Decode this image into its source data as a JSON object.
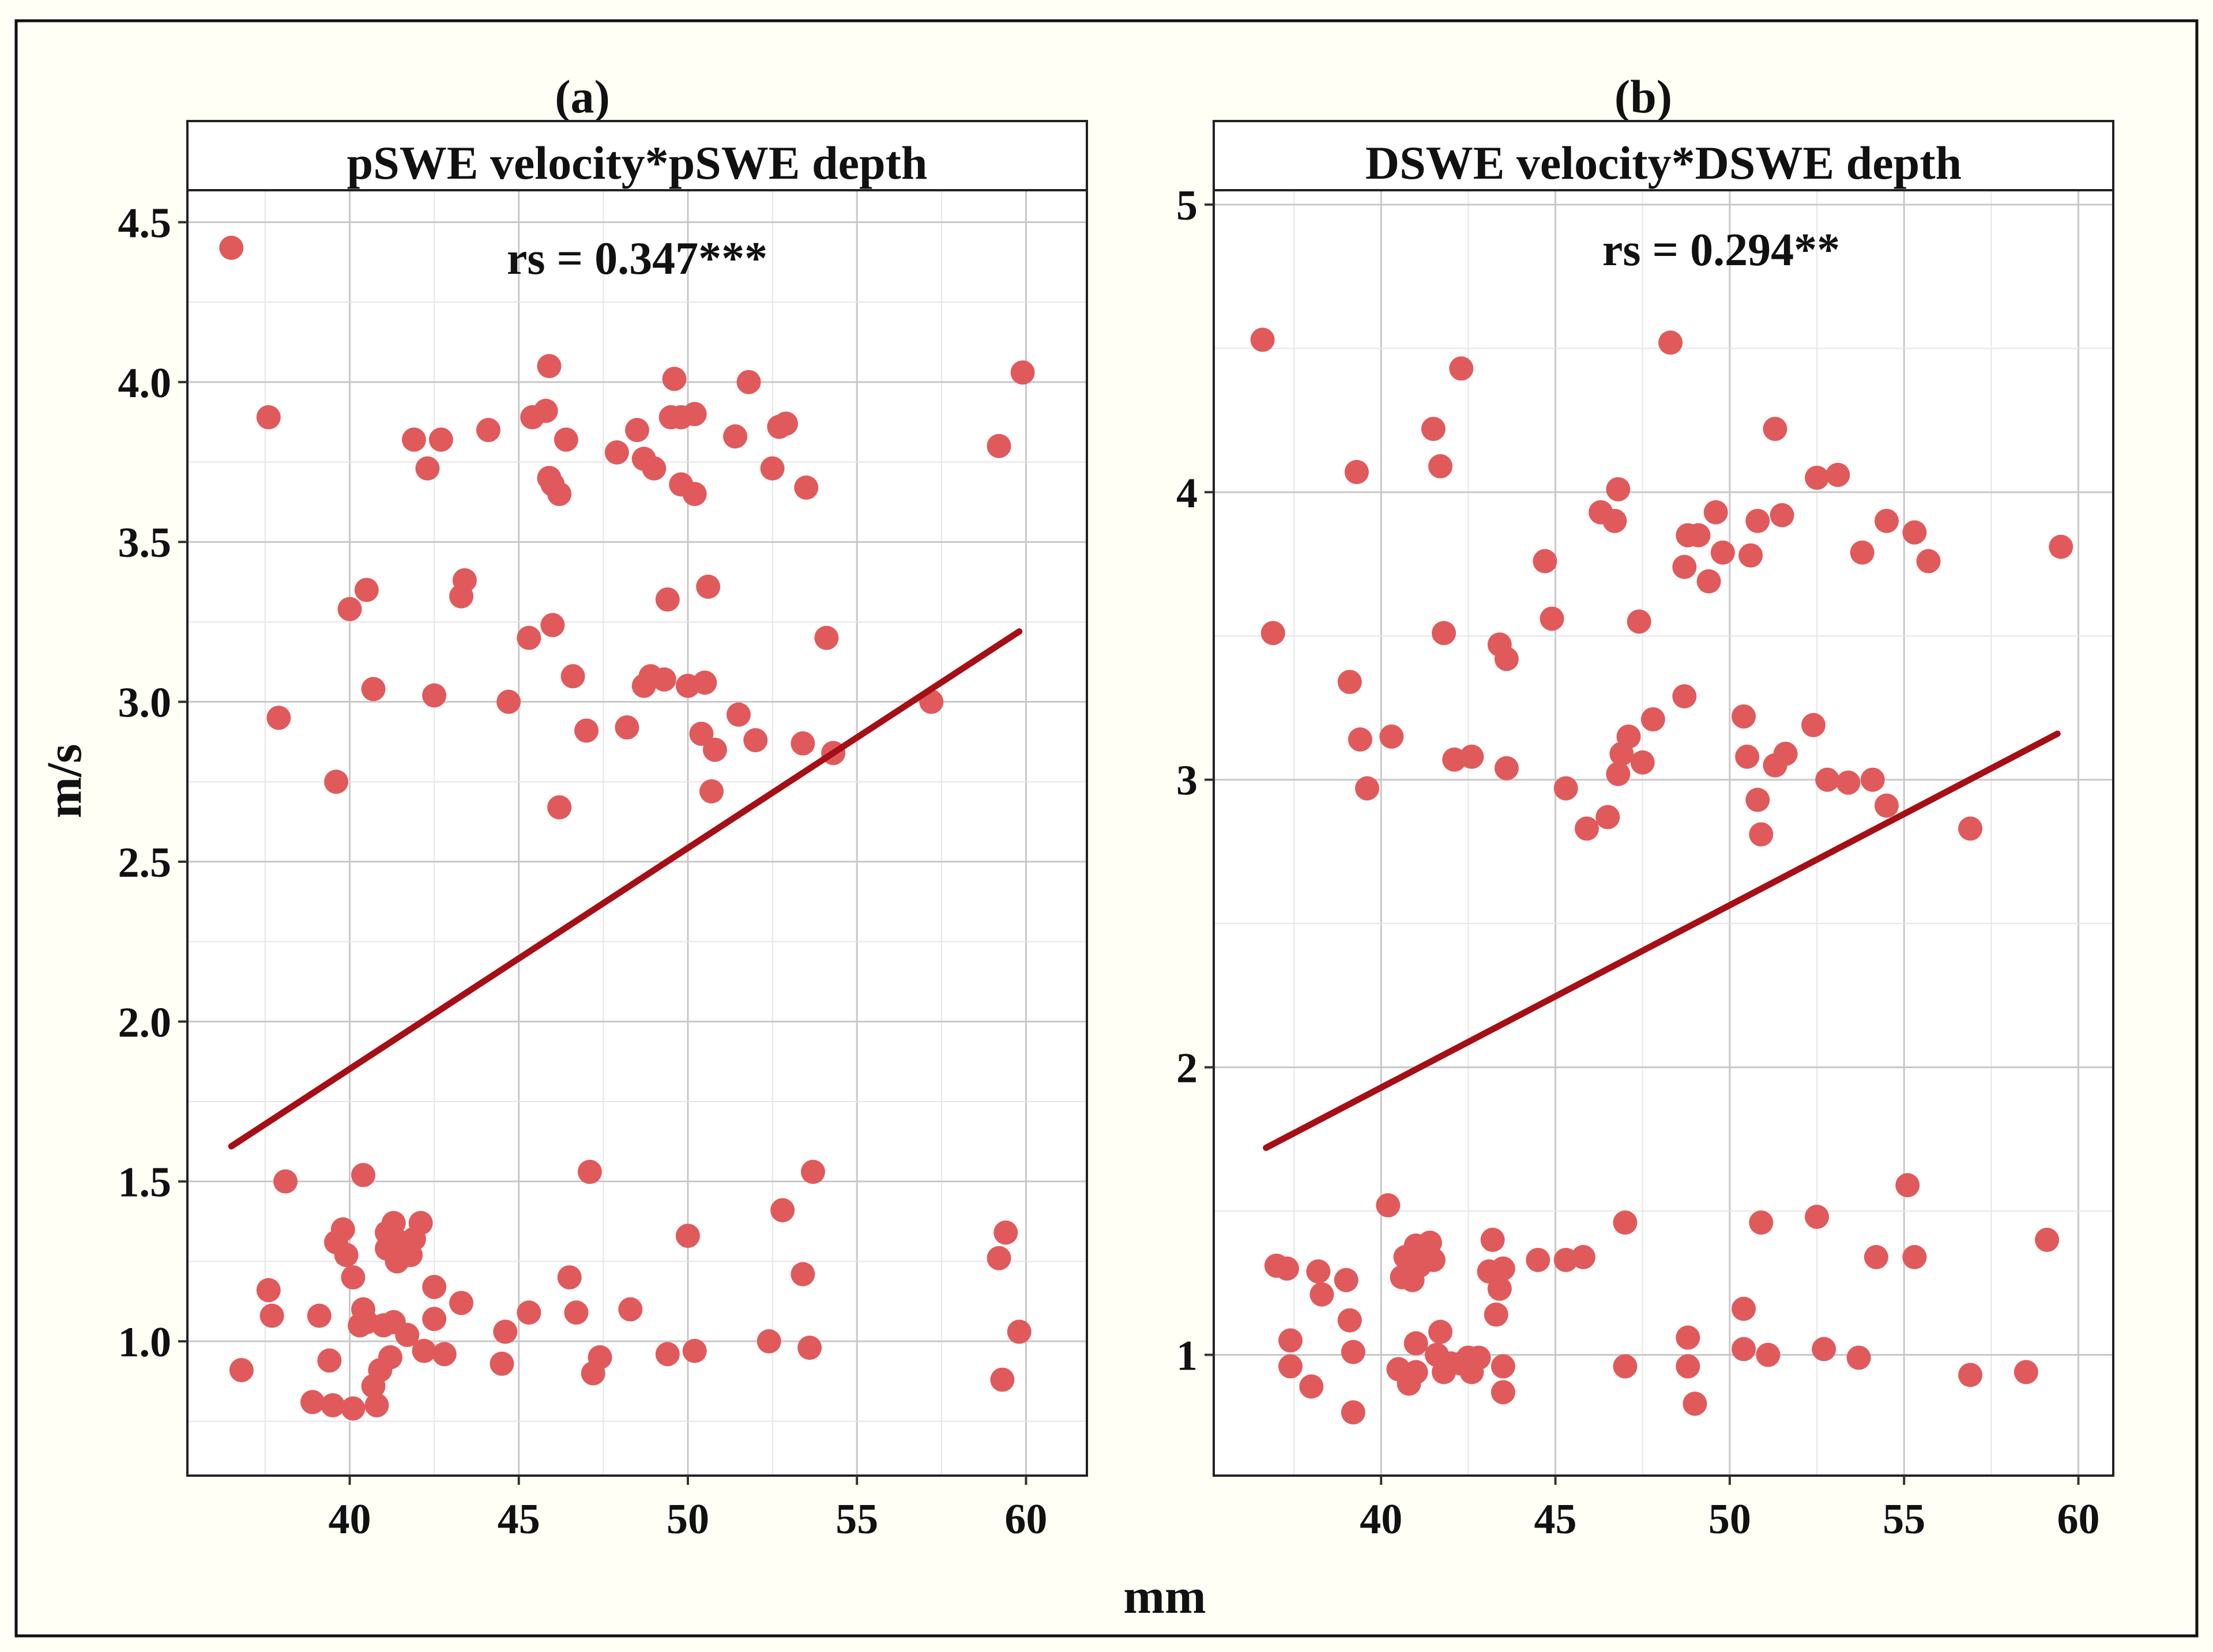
{
  "figure": {
    "xlabel": "mm",
    "ylabel": "m/s",
    "frame_color": "#fffff6",
    "point_color": "#e05a5c",
    "line_color": "#a50f15"
  },
  "chart_data": [
    {
      "type": "scatter",
      "panel_tag": "(a)",
      "title": "pSWE velocity*pSWE depth",
      "annotation": "rs = 0.347***",
      "xlabel": "mm",
      "ylabel": "m/s",
      "xlim": [
        35.2,
        61.8
      ],
      "ylim": [
        0.58,
        4.6
      ],
      "xticks": [
        40,
        45,
        50,
        55,
        60
      ],
      "xtick_labels": [
        "40",
        "45",
        "50",
        "55",
        "60"
      ],
      "yticks": [
        1.0,
        1.5,
        2.0,
        2.5,
        3.0,
        3.5,
        4.0,
        4.5
      ],
      "ytick_labels": [
        "1.0",
        "1.5",
        "2.0",
        "2.5",
        "3.0",
        "3.5",
        "4.0",
        "4.5"
      ],
      "grid": true,
      "fit_line": {
        "x": [
          36.5,
          59.8
        ],
        "y": [
          1.61,
          3.22
        ]
      },
      "points": [
        [
          36.5,
          4.42
        ],
        [
          37.6,
          3.89
        ],
        [
          37.9,
          2.95
        ],
        [
          39.6,
          2.75
        ],
        [
          40,
          3.29
        ],
        [
          40.5,
          3.35
        ],
        [
          40.7,
          3.04
        ],
        [
          41.9,
          3.82
        ],
        [
          42.3,
          3.73
        ],
        [
          42.5,
          3.02
        ],
        [
          42.7,
          3.82
        ],
        [
          43.3,
          3.33
        ],
        [
          43.4,
          3.38
        ],
        [
          44.1,
          3.85
        ],
        [
          44.7,
          3.0
        ],
        [
          45.3,
          3.2
        ],
        [
          45.4,
          3.89
        ],
        [
          45.8,
          3.91
        ],
        [
          45.9,
          4.05
        ],
        [
          45.9,
          3.7
        ],
        [
          46,
          3.24
        ],
        [
          46,
          3.68
        ],
        [
          46.2,
          3.65
        ],
        [
          46.2,
          2.67
        ],
        [
          46.4,
          3.82
        ],
        [
          46.6,
          3.08
        ],
        [
          47,
          2.91
        ],
        [
          47.9,
          3.78
        ],
        [
          48.2,
          2.92
        ],
        [
          48.5,
          3.85
        ],
        [
          48.7,
          3.05
        ],
        [
          48.7,
          3.76
        ],
        [
          48.9,
          3.08
        ],
        [
          49,
          3.73
        ],
        [
          49.3,
          3.07
        ],
        [
          49.4,
          3.32
        ],
        [
          49.5,
          3.89
        ],
        [
          49.6,
          4.01
        ],
        [
          49.8,
          3.89
        ],
        [
          49.8,
          3.68
        ],
        [
          50,
          3.05
        ],
        [
          50.2,
          3.9
        ],
        [
          50.2,
          3.65
        ],
        [
          50.4,
          2.9
        ],
        [
          50.5,
          3.06
        ],
        [
          50.6,
          3.36
        ],
        [
          50.7,
          2.72
        ],
        [
          50.8,
          2.85
        ],
        [
          51.4,
          3.83
        ],
        [
          51.5,
          2.96
        ],
        [
          51.8,
          4.0
        ],
        [
          52,
          2.88
        ],
        [
          52.5,
          3.73
        ],
        [
          52.7,
          3.86
        ],
        [
          52.9,
          3.87
        ],
        [
          53.4,
          2.87
        ],
        [
          53.5,
          3.67
        ],
        [
          54.1,
          3.2
        ],
        [
          54.3,
          2.84
        ],
        [
          57.2,
          3.0
        ],
        [
          59.2,
          3.8
        ],
        [
          59.9,
          4.03
        ],
        [
          36.8,
          0.91
        ],
        [
          37.6,
          1.16
        ],
        [
          37.7,
          1.08
        ],
        [
          38.1,
          1.5
        ],
        [
          38.9,
          0.81
        ],
        [
          39.1,
          1.08
        ],
        [
          39.4,
          0.94
        ],
        [
          39.5,
          0.8
        ],
        [
          39.6,
          1.31
        ],
        [
          39.8,
          1.35
        ],
        [
          39.9,
          1.27
        ],
        [
          40.1,
          1.2
        ],
        [
          40.1,
          0.79
        ],
        [
          40.3,
          1.05
        ],
        [
          40.4,
          1.1
        ],
        [
          40.4,
          1.52
        ],
        [
          40.5,
          1.06
        ],
        [
          40.7,
          0.86
        ],
        [
          40.8,
          0.8
        ],
        [
          40.9,
          0.91
        ],
        [
          41,
          1.05
        ],
        [
          41.1,
          1.29
        ],
        [
          41.1,
          1.34
        ],
        [
          41.2,
          0.95
        ],
        [
          41.3,
          1.37
        ],
        [
          41.3,
          1.06
        ],
        [
          41.4,
          1.25
        ],
        [
          41.5,
          1.31
        ],
        [
          41.6,
          1.28
        ],
        [
          41.7,
          1.02
        ],
        [
          41.8,
          1.27
        ],
        [
          41.9,
          1.32
        ],
        [
          42.1,
          1.37
        ],
        [
          42.2,
          0.97
        ],
        [
          42.5,
          1.17
        ],
        [
          42.5,
          1.07
        ],
        [
          42.8,
          0.96
        ],
        [
          43.3,
          1.12
        ],
        [
          44.5,
          0.93
        ],
        [
          44.6,
          1.03
        ],
        [
          45.3,
          1.09
        ],
        [
          46.5,
          1.2
        ],
        [
          46.7,
          1.09
        ],
        [
          47.1,
          1.53
        ],
        [
          47.2,
          0.9
        ],
        [
          47.4,
          0.95
        ],
        [
          48.3,
          1.1
        ],
        [
          49.4,
          0.96
        ],
        [
          50,
          1.33
        ],
        [
          50.2,
          0.97
        ],
        [
          52.4,
          1.0
        ],
        [
          52.8,
          1.41
        ],
        [
          53.4,
          1.21
        ],
        [
          53.6,
          0.98
        ],
        [
          53.7,
          1.53
        ],
        [
          59.2,
          1.26
        ],
        [
          59.3,
          0.88
        ],
        [
          59.4,
          1.34
        ],
        [
          59.8,
          1.03
        ]
      ]
    },
    {
      "type": "scatter",
      "panel_tag": "(b)",
      "title": "DSWE velocity*DSWE depth",
      "annotation": "rs = 0.294**",
      "xlabel": "mm",
      "ylabel": "m/s",
      "xlim": [
        35.2,
        61.0
      ],
      "ylim": [
        0.58,
        5.05
      ],
      "xticks": [
        40,
        45,
        50,
        55,
        60
      ],
      "xtick_labels": [
        "40",
        "45",
        "50",
        "55",
        "60"
      ],
      "yticks": [
        1,
        2,
        3,
        4,
        5
      ],
      "ytick_labels": [
        "1",
        "2",
        "3",
        "4",
        "5"
      ],
      "grid": true,
      "fit_line": {
        "x": [
          36.7,
          59.4
        ],
        "y": [
          1.72,
          3.16
        ]
      },
      "points": [
        [
          36.6,
          4.53
        ],
        [
          36.9,
          3.51
        ],
        [
          39.1,
          3.34
        ],
        [
          39.3,
          4.07
        ],
        [
          39.4,
          3.14
        ],
        [
          39.6,
          2.97
        ],
        [
          40.3,
          3.15
        ],
        [
          41.5,
          4.22
        ],
        [
          41.7,
          4.09
        ],
        [
          41.8,
          3.51
        ],
        [
          42.1,
          3.07
        ],
        [
          42.3,
          4.43
        ],
        [
          42.6,
          3.08
        ],
        [
          43.4,
          3.47
        ],
        [
          43.6,
          3.42
        ],
        [
          43.6,
          3.04
        ],
        [
          44.7,
          3.76
        ],
        [
          44.9,
          3.56
        ],
        [
          45.3,
          2.97
        ],
        [
          45.9,
          2.83
        ],
        [
          46.3,
          3.93
        ],
        [
          46.5,
          2.87
        ],
        [
          46.7,
          3.9
        ],
        [
          46.8,
          4.01
        ],
        [
          46.8,
          3.02
        ],
        [
          46.9,
          3.09
        ],
        [
          47.1,
          3.15
        ],
        [
          47.4,
          3.55
        ],
        [
          47.5,
          3.06
        ],
        [
          47.8,
          3.21
        ],
        [
          48.3,
          4.52
        ],
        [
          48.7,
          3.74
        ],
        [
          48.7,
          3.29
        ],
        [
          48.8,
          3.85
        ],
        [
          49.1,
          3.85
        ],
        [
          49.4,
          3.69
        ],
        [
          49.6,
          3.93
        ],
        [
          49.8,
          3.79
        ],
        [
          50.4,
          3.22
        ],
        [
          50.5,
          3.08
        ],
        [
          50.6,
          3.78
        ],
        [
          50.8,
          3.9
        ],
        [
          50.8,
          2.93
        ],
        [
          50.9,
          2.81
        ],
        [
          51.3,
          4.22
        ],
        [
          51.3,
          3.05
        ],
        [
          51.5,
          3.92
        ],
        [
          51.6,
          3.09
        ],
        [
          52.4,
          3.19
        ],
        [
          52.5,
          4.05
        ],
        [
          52.8,
          3.0
        ],
        [
          53.1,
          4.06
        ],
        [
          53.4,
          2.99
        ],
        [
          53.8,
          3.79
        ],
        [
          54.1,
          3.0
        ],
        [
          54.5,
          3.9
        ],
        [
          54.5,
          2.91
        ],
        [
          55.3,
          3.86
        ],
        [
          55.7,
          3.76
        ],
        [
          56.9,
          2.83
        ],
        [
          59.5,
          3.81
        ],
        [
          37,
          1.31
        ],
        [
          37.3,
          1.3
        ],
        [
          37.4,
          1.05
        ],
        [
          37.4,
          0.96
        ],
        [
          38,
          0.89
        ],
        [
          38.2,
          1.29
        ],
        [
          38.3,
          1.21
        ],
        [
          39,
          1.26
        ],
        [
          39.1,
          1.12
        ],
        [
          39.2,
          1.01
        ],
        [
          39.2,
          0.8
        ],
        [
          40.2,
          1.52
        ],
        [
          40.5,
          0.95
        ],
        [
          40.6,
          1.27
        ],
        [
          40.7,
          1.34
        ],
        [
          40.8,
          0.9
        ],
        [
          40.9,
          1.26
        ],
        [
          41,
          1.38
        ],
        [
          41,
          0.94
        ],
        [
          41,
          1.04
        ],
        [
          41.1,
          1.31
        ],
        [
          41.2,
          1.35
        ],
        [
          41.4,
          1.39
        ],
        [
          41.5,
          1.33
        ],
        [
          41.6,
          1.0
        ],
        [
          41.7,
          1.08
        ],
        [
          41.8,
          0.94
        ],
        [
          42,
          0.97
        ],
        [
          42.3,
          0.97
        ],
        [
          42.5,
          0.99
        ],
        [
          42.6,
          0.94
        ],
        [
          42.8,
          0.99
        ],
        [
          43.1,
          1.29
        ],
        [
          43.2,
          1.4
        ],
        [
          43.3,
          1.14
        ],
        [
          43.4,
          1.23
        ],
        [
          43.5,
          1.3
        ],
        [
          43.5,
          0.96
        ],
        [
          43.5,
          0.87
        ],
        [
          44.5,
          1.33
        ],
        [
          45.3,
          1.33
        ],
        [
          45.8,
          1.34
        ],
        [
          47,
          1.46
        ],
        [
          47,
          0.96
        ],
        [
          48.8,
          1.06
        ],
        [
          48.8,
          0.96
        ],
        [
          49,
          0.83
        ],
        [
          50.4,
          1.02
        ],
        [
          50.4,
          1.16
        ],
        [
          50.9,
          1.46
        ],
        [
          51.1,
          1.0
        ],
        [
          52.5,
          1.48
        ],
        [
          52.7,
          1.02
        ],
        [
          53.7,
          0.99
        ],
        [
          54.2,
          1.34
        ],
        [
          55.1,
          1.59
        ],
        [
          55.3,
          1.34
        ],
        [
          56.9,
          0.93
        ],
        [
          58.5,
          0.94
        ],
        [
          59.1,
          1.4
        ]
      ]
    }
  ]
}
